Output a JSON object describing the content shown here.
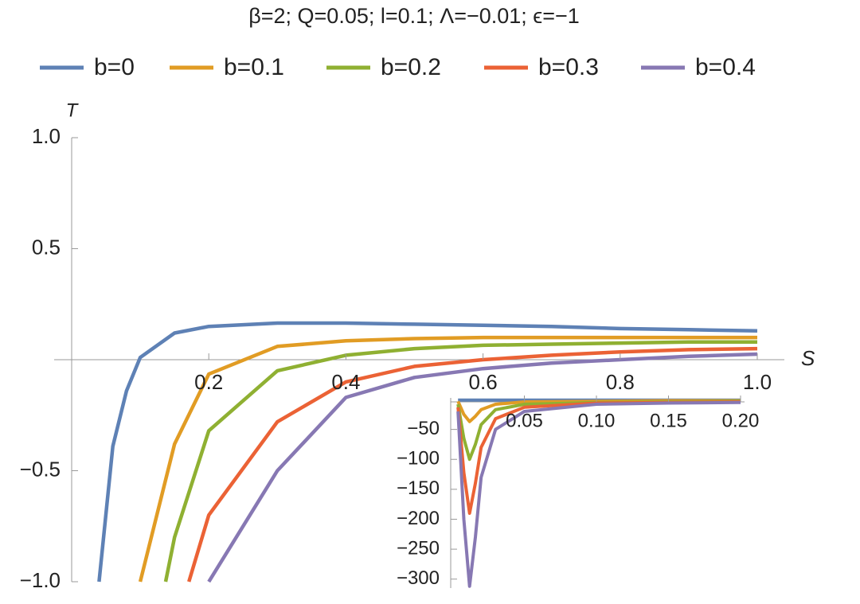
{
  "chart_data": [
    {
      "type": "line",
      "title": "β=2; Q=0.05; l=0.1; Λ=−0.01; ϵ=−1",
      "x_label": "S",
      "y_label": "T",
      "xlim": [
        0,
        1
      ],
      "ylim": [
        -1,
        1
      ],
      "xticks": [
        0.2,
        0.4,
        0.6,
        {
          "value": 0.8,
          "label": "0.8"
        },
        {
          "value": 1,
          "label": "1.0"
        }
      ],
      "yticks": [
        {
          "value": -1,
          "label": "−1.0"
        },
        {
          "value": -0.5,
          "label": "−0.5"
        },
        0.5,
        {
          "value": 1,
          "label": "1.0"
        }
      ],
      "series": [
        {
          "name": "b=0",
          "color": "#5e81b5",
          "x": [
            0.04,
            0.06,
            0.08,
            0.1,
            0.15,
            0.2,
            0.3,
            0.4,
            0.5,
            0.6,
            0.7,
            0.8,
            0.9,
            1
          ],
          "values": [
            -1,
            -0.39,
            -0.14,
            0.01,
            0.12,
            0.15,
            0.165,
            0.165,
            0.16,
            0.155,
            0.15,
            0.14,
            0.135,
            0.13
          ]
        },
        {
          "name": "b=0.1",
          "color": "#e19c24",
          "x": [
            0.1,
            0.15,
            0.2,
            0.3,
            0.4,
            0.5,
            0.6,
            0.7,
            0.8,
            0.9,
            1
          ],
          "values": [
            -1,
            -0.38,
            -0.065,
            0.06,
            0.085,
            0.095,
            0.1,
            0.1,
            0.1,
            0.1,
            0.1
          ]
        },
        {
          "name": "b=0.2",
          "color": "#8fb032",
          "x": [
            0.137,
            0.15,
            0.2,
            0.3,
            0.4,
            0.5,
            0.6,
            0.7,
            0.8,
            0.9,
            1
          ],
          "values": [
            -1,
            -0.8,
            -0.32,
            -0.05,
            0.02,
            0.05,
            0.065,
            0.07,
            0.075,
            0.08,
            0.08
          ]
        },
        {
          "name": "b=0.3",
          "color": "#eb6235",
          "x": [
            0.171,
            0.2,
            0.3,
            0.4,
            0.5,
            0.6,
            0.7,
            0.8,
            0.9,
            1
          ],
          "values": [
            -1,
            -0.7,
            -0.28,
            -0.1,
            -0.03,
            0,
            0.02,
            0.035,
            0.045,
            0.05
          ]
        },
        {
          "name": "b=0.4",
          "color": "#8778b3",
          "x": [
            0.2,
            0.3,
            0.4,
            0.5,
            0.6,
            0.7,
            0.8,
            0.9,
            1
          ],
          "values": [
            -1,
            -0.5,
            -0.17,
            -0.08,
            -0.04,
            -0.015,
            0,
            0.015,
            0.025
          ]
        }
      ]
    },
    {
      "type": "line",
      "xlim": [
        0,
        0.2
      ],
      "ylim": [
        -315,
        0
      ],
      "xticks": [
        0.05,
        {
          "value": 0.1,
          "label": "0.10"
        },
        0.15,
        {
          "value": 0.2,
          "label": "0.20"
        }
      ],
      "yticks": [
        {
          "value": -50,
          "label": "−50"
        },
        {
          "value": -100,
          "label": "−100"
        },
        {
          "value": -150,
          "label": "−150"
        },
        {
          "value": -200,
          "label": "−200"
        },
        {
          "value": -250,
          "label": "−250"
        },
        {
          "value": -300,
          "label": "−300"
        }
      ],
      "x": [
        0.004,
        0.008,
        0.012,
        0.016,
        0.02,
        0.03,
        0.05,
        0.1,
        0.15,
        0.2
      ],
      "series": [
        {
          "color": "#5e81b5",
          "values": [
            -1,
            -1,
            -1,
            -1,
            -1,
            -1,
            -1,
            -1,
            -1,
            -1
          ]
        },
        {
          "color": "#e19c24",
          "values": [
            -3,
            -25,
            -37,
            -28,
            -17,
            -8,
            -4,
            -3,
            -2,
            -2
          ]
        },
        {
          "color": "#8fb032",
          "values": [
            -8,
            -65,
            -100,
            -75,
            -42,
            -17,
            -8,
            -5,
            -4,
            -3
          ]
        },
        {
          "color": "#eb6235",
          "values": [
            -13,
            -122,
            -190,
            -140,
            -80,
            -32,
            -13,
            -6,
            -5,
            -4
          ]
        },
        {
          "color": "#8778b3",
          "values": [
            -20,
            -200,
            -312,
            -230,
            -130,
            -50,
            -20,
            -8,
            -6,
            -5
          ]
        }
      ]
    }
  ]
}
